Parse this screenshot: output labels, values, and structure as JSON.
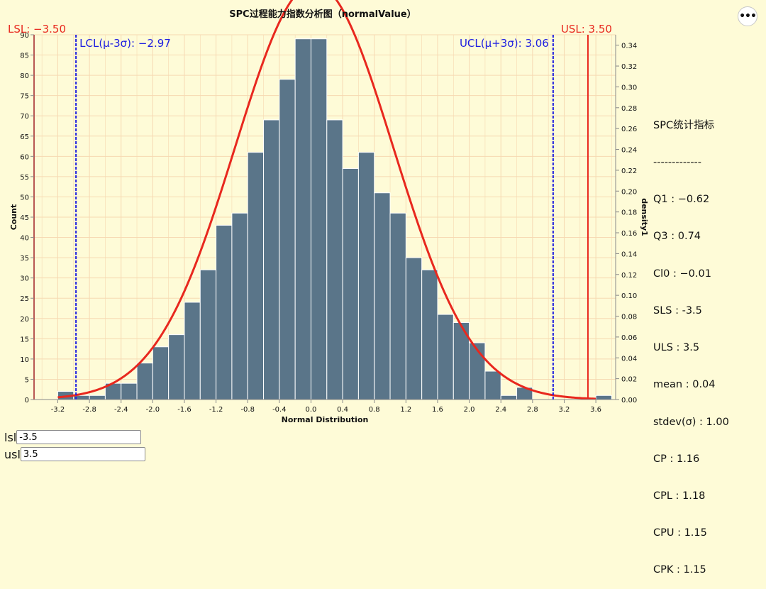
{
  "menu": {
    "icon": "more-dots-icon",
    "glyph": "•••"
  },
  "chart_data": {
    "type": "bar",
    "title": "SPC过程能力指数分析图（normalValue）",
    "xlabel": "Normal Distribution",
    "ylabel": "Count",
    "y2label": "density1",
    "xlim": [
      -3.5,
      3.85
    ],
    "ylim": [
      0,
      90
    ],
    "y2lim": [
      0,
      0.35
    ],
    "x_ticks": [
      -3.2,
      -2.8,
      -2.4,
      -2.0,
      -1.6,
      -1.2,
      -0.8,
      -0.4,
      0.0,
      0.4,
      0.8,
      1.2,
      1.6,
      2.0,
      2.4,
      2.8,
      3.2,
      3.6
    ],
    "x_tick_labels": [
      "-3.2",
      "-2.8",
      "-2.4",
      "-2.0",
      "-1.6",
      "-1.2",
      "-0.8",
      "-0.4",
      "0.0",
      "0.4",
      "0.8",
      "1.2",
      "1.6",
      "2.0",
      "2.4",
      "2.8",
      "3.2",
      "3.6"
    ],
    "y_ticks": [
      0,
      5,
      10,
      15,
      20,
      25,
      30,
      35,
      40,
      45,
      50,
      55,
      60,
      65,
      70,
      75,
      80,
      85,
      90
    ],
    "y_tick_labels": [
      "0",
      "5",
      "10",
      "15",
      "20",
      "25",
      "30",
      "35",
      "40",
      "45",
      "50",
      "55",
      "60",
      "65",
      "70",
      "75",
      "80",
      "85",
      "90"
    ],
    "y2_ticks": [
      0.0,
      0.02,
      0.04,
      0.06,
      0.08,
      0.1,
      0.12,
      0.14,
      0.16,
      0.18,
      0.2,
      0.22,
      0.24,
      0.26,
      0.28,
      0.3,
      0.32,
      0.34
    ],
    "y2_tick_labels": [
      "0.00",
      "0.02",
      "0.04",
      "0.06",
      "0.08",
      "0.10",
      "0.12",
      "0.14",
      "0.16",
      "0.18",
      "0.20",
      "0.22",
      "0.24",
      "0.26",
      "0.28",
      "0.30",
      "0.32",
      "0.34"
    ],
    "bin_width": 0.2,
    "bins": [
      {
        "x0": -3.2,
        "count": 2
      },
      {
        "x0": -3.0,
        "count": 1
      },
      {
        "x0": -2.8,
        "count": 1
      },
      {
        "x0": -2.6,
        "count": 4
      },
      {
        "x0": -2.4,
        "count": 4
      },
      {
        "x0": -2.2,
        "count": 9
      },
      {
        "x0": -2.0,
        "count": 13
      },
      {
        "x0": -1.8,
        "count": 16
      },
      {
        "x0": -1.6,
        "count": 24
      },
      {
        "x0": -1.4,
        "count": 32
      },
      {
        "x0": -1.2,
        "count": 43
      },
      {
        "x0": -1.0,
        "count": 46
      },
      {
        "x0": -0.8,
        "count": 61
      },
      {
        "x0": -0.6,
        "count": 69
      },
      {
        "x0": -0.4,
        "count": 79
      },
      {
        "x0": -0.2,
        "count": 89
      },
      {
        "x0": 0.0,
        "count": 89
      },
      {
        "x0": 0.2,
        "count": 69
      },
      {
        "x0": 0.4,
        "count": 57
      },
      {
        "x0": 0.6,
        "count": 61
      },
      {
        "x0": 0.8,
        "count": 51
      },
      {
        "x0": 1.0,
        "count": 46
      },
      {
        "x0": 1.2,
        "count": 35
      },
      {
        "x0": 1.4,
        "count": 32
      },
      {
        "x0": 1.6,
        "count": 21
      },
      {
        "x0": 1.8,
        "count": 19
      },
      {
        "x0": 2.0,
        "count": 14
      },
      {
        "x0": 2.2,
        "count": 7
      },
      {
        "x0": 2.4,
        "count": 1
      },
      {
        "x0": 2.6,
        "count": 3
      },
      {
        "x0": 3.6,
        "count": 1
      }
    ],
    "curve": {
      "type": "normal_density",
      "mean": 0.04,
      "stdev": 1.0,
      "x_range": [
        -3.2,
        3.6
      ]
    },
    "ref_lines": [
      {
        "x": -3.5,
        "label": "LSL: −3.50",
        "color": "#e8281e",
        "style": "solid"
      },
      {
        "x": 3.5,
        "label": "USL: 3.50",
        "color": "#e8281e",
        "style": "solid"
      },
      {
        "x": -2.97,
        "label": "LCL(μ-3σ): −2.97",
        "color": "#1d1de0",
        "style": "dashed"
      },
      {
        "x": 3.06,
        "label": "UCL(μ+3σ): 3.06",
        "color": "#1d1de0",
        "style": "dashed"
      }
    ],
    "colors": {
      "bar": "#5a7589",
      "curve": "#e8281e",
      "spec": "#e8281e",
      "control": "#1d1de0",
      "grid": "#f6d9b2"
    }
  },
  "stats": {
    "title": "SPC统计指标",
    "divider": "-------------",
    "items": [
      "Q1 : −0.62",
      "Q3 : 0.74",
      "Cl0 : −0.01",
      "SLS : -3.5",
      "ULS : 3.5",
      "mean : 0.04",
      "stdev(σ) : 1.00",
      "CP : 1.16",
      "CPL : 1.18",
      "CPU : 1.15",
      "CPK : 1.15"
    ]
  },
  "params": {
    "lsl": {
      "label": "lsl",
      "value": "-3.5"
    },
    "usl": {
      "label": "usl",
      "value": "3.5"
    }
  }
}
